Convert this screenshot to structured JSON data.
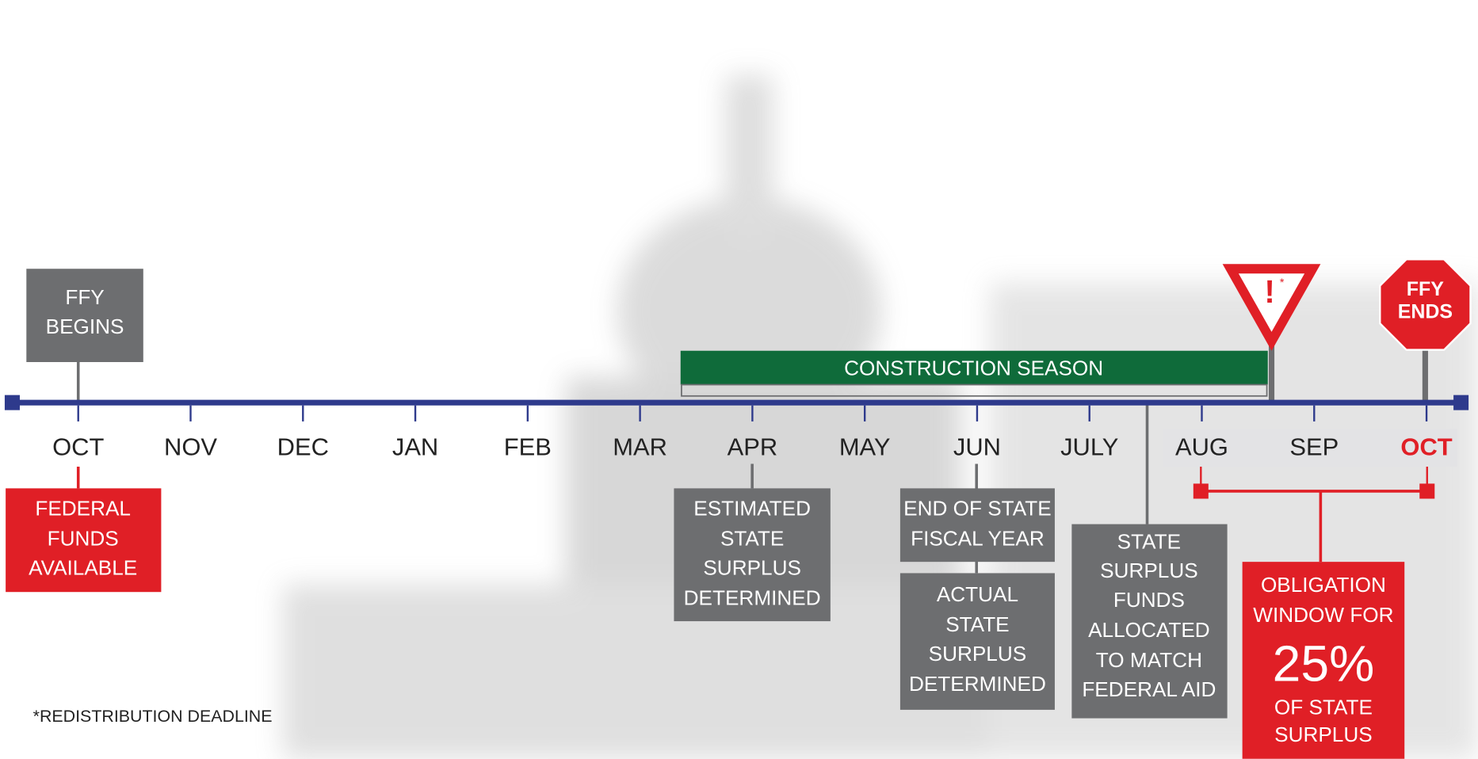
{
  "timeline": {
    "months": [
      "OCT",
      "NOV",
      "DEC",
      "JAN",
      "FEB",
      "MAR",
      "APR",
      "MAY",
      "JUN",
      "JULY",
      "AUG",
      "SEP",
      "OCT"
    ]
  },
  "ffy_begins": [
    "FFY",
    "BEGINS"
  ],
  "ffy_ends": [
    "FFY",
    "ENDS"
  ],
  "yield_sign": [
    "!",
    "*"
  ],
  "construction_season": "CONSTRUCTION SEASON",
  "federal_funds": [
    "FEDERAL",
    "FUNDS",
    "AVAILABLE"
  ],
  "estimated_surplus": [
    "ESTIMATED",
    "STATE",
    "SURPLUS",
    "DETERMINED"
  ],
  "end_fiscal_year": [
    "END OF STATE",
    "FISCAL YEAR"
  ],
  "actual_surplus": [
    "ACTUAL",
    "STATE",
    "SURPLUS",
    "DETERMINED"
  ],
  "surplus_allocated": [
    "STATE",
    "SURPLUS",
    "FUNDS",
    "ALLOCATED",
    "TO MATCH",
    "FEDERAL AID"
  ],
  "obligation_window": {
    "top": [
      "OBLIGATION",
      "WINDOW FOR"
    ],
    "percent": "25%",
    "bottom": [
      "OF STATE",
      "SURPLUS"
    ]
  },
  "footnote": "*REDISTRIBUTION DEADLINE"
}
